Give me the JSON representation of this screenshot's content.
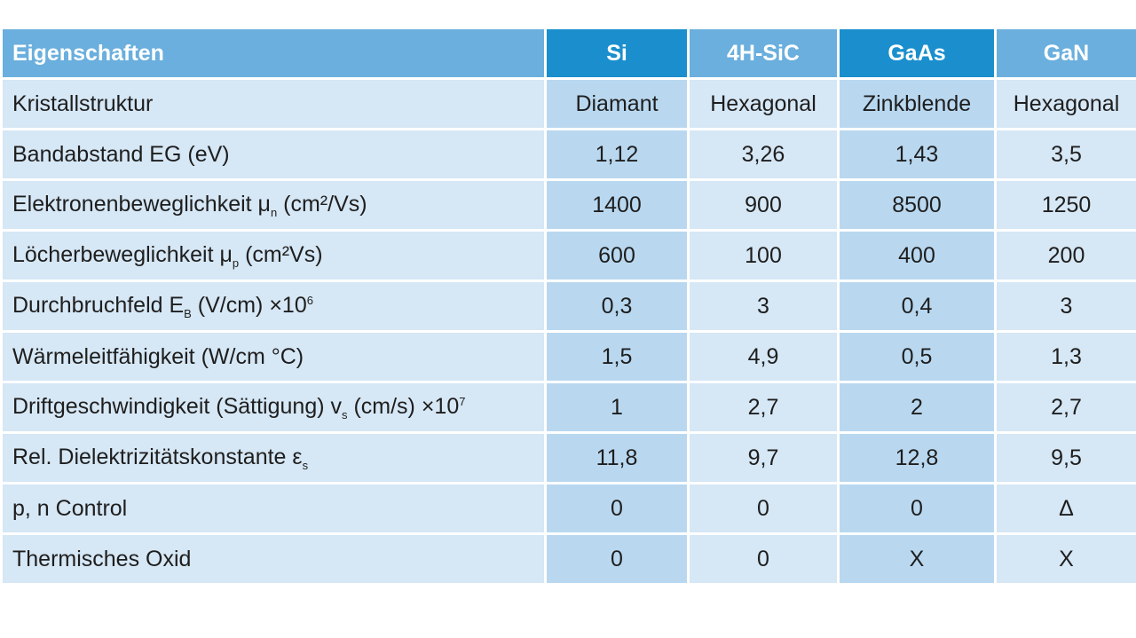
{
  "colors": {
    "header_dark": "#1b8fcd",
    "header_light": "#6aafdd",
    "row_light": "#d6e7f5",
    "row_dark": "#b9d8f0"
  },
  "table": {
    "headers": [
      "Eigenschaften",
      "Si",
      "4H-SiC",
      "GaAs",
      "GaN"
    ],
    "rows": [
      {
        "label": {
          "main": "Kristallstruktur"
        },
        "values": [
          "Diamant",
          "Hexagonal",
          "Zinkblende",
          "Hexagonal"
        ]
      },
      {
        "label": {
          "main": "Bandabstand EG (eV)"
        },
        "values": [
          "1,12",
          "3,26",
          "1,43",
          "3,5"
        ]
      },
      {
        "label": {
          "main": "Elektronenbeweglichkeit μ",
          "sub": "n",
          "rest": " (cm²/Vs)"
        },
        "values": [
          "1400",
          "900",
          "8500",
          "1250"
        ]
      },
      {
        "label": {
          "main": "Löcherbeweglichkeit μ",
          "sub": "p",
          "rest": " (cm²Vs)"
        },
        "values": [
          "600",
          "100",
          "400",
          "200"
        ]
      },
      {
        "label": {
          "main": "Durchbruchfeld E",
          "sub": "B",
          "rest": " (V/cm) ×10",
          "sup": "6"
        },
        "values": [
          "0,3",
          "3",
          "0,4",
          "3"
        ]
      },
      {
        "label": {
          "main": "Wärmeleitfähigkeit (W/cm °C)"
        },
        "values": [
          "1,5",
          "4,9",
          "0,5",
          "1,3"
        ]
      },
      {
        "label": {
          "main": "Driftgeschwindigkeit (Sättigung) v",
          "sub": "s",
          "rest": " (cm/s) ×10",
          "sup": "7"
        },
        "values": [
          "1",
          "2,7",
          "2",
          "2,7"
        ]
      },
      {
        "label": {
          "main": "Rel. Dielektrizitätskonstante ε",
          "sub": "s"
        },
        "values": [
          "11,8",
          "9,7",
          "12,8",
          "9,5"
        ]
      },
      {
        "label": {
          "main": "p, n Control"
        },
        "values": [
          "0",
          "0",
          "0",
          "Δ"
        ]
      },
      {
        "label": {
          "main": "Thermisches Oxid"
        },
        "values": [
          "0",
          "0",
          "X",
          "X"
        ]
      }
    ]
  }
}
